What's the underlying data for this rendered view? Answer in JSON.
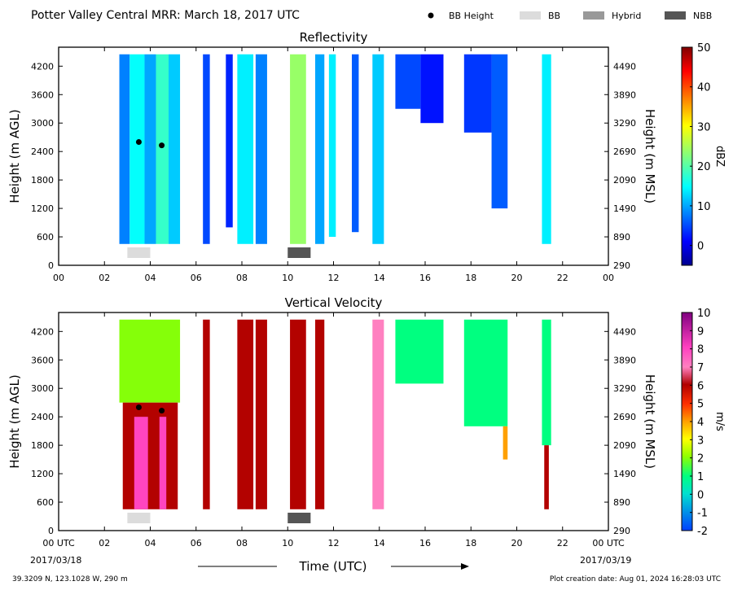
{
  "header": {
    "title": "Potter Valley Central MRR:  March 18, 2017 UTC",
    "legend": [
      {
        "label": "BB Height",
        "kind": "dot",
        "color": "#000000"
      },
      {
        "label": "BB",
        "kind": "bar",
        "color": "#dcdcdc"
      },
      {
        "label": "Hybrid",
        "kind": "bar",
        "color": "#999999"
      },
      {
        "label": "NBB",
        "kind": "bar",
        "color": "#555555"
      }
    ]
  },
  "footer": {
    "location": "39.3209 N, 123.1028 W, 290 m",
    "creation": "Plot creation date: Aug 01, 2024 16:28:03 UTC",
    "xlabel": "Time (UTC)",
    "start_date": "2017/03/18",
    "end_date": "2017/03/19"
  },
  "chart_data": [
    {
      "type": "heatmap",
      "title": "Reflectivity",
      "xlabel": "",
      "ylabel": "Height (m AGL)",
      "ylabel_right": "Height (m MSL)",
      "xlim": [
        0,
        24
      ],
      "ylim": [
        0,
        4600
      ],
      "x_ticks": [
        "00",
        "02",
        "04",
        "06",
        "08",
        "10",
        "12",
        "14",
        "16",
        "18",
        "20",
        "22",
        "00"
      ],
      "y_ticks": [
        0,
        600,
        1200,
        1800,
        2400,
        3000,
        3600,
        4200
      ],
      "y_ticks_right": [
        290,
        890,
        1490,
        2090,
        2690,
        3290,
        3890,
        4490
      ],
      "colorbar": {
        "label": "dBZ",
        "min": -5,
        "max": 50,
        "ticks": [
          0,
          10,
          20,
          30,
          40,
          50
        ]
      },
      "bb_height": [
        {
          "time": 3.5,
          "height": 2600
        },
        {
          "time": 4.5,
          "height": 2530
        }
      ],
      "bb_type_periods": [
        {
          "start": 3.0,
          "end": 4.0,
          "type": "BB"
        },
        {
          "start": 10.0,
          "end": 11.0,
          "type": "NBB"
        }
      ],
      "echo_columns": [
        {
          "start": 2.65,
          "end": 3.1,
          "top": 4450,
          "bottom": 450,
          "value": 8
        },
        {
          "start": 3.1,
          "end": 3.75,
          "top": 4450,
          "bottom": 450,
          "value": 15
        },
        {
          "start": 3.75,
          "end": 4.25,
          "top": 4450,
          "bottom": 450,
          "value": 10
        },
        {
          "start": 4.25,
          "end": 4.8,
          "top": 4450,
          "bottom": 450,
          "value": 18
        },
        {
          "start": 4.8,
          "end": 5.3,
          "top": 4450,
          "bottom": 450,
          "value": 12
        },
        {
          "start": 6.3,
          "end": 6.6,
          "top": 4450,
          "bottom": 450,
          "value": 5
        },
        {
          "start": 7.3,
          "end": 7.6,
          "top": 4450,
          "bottom": 800,
          "value": 3
        },
        {
          "start": 7.8,
          "end": 8.5,
          "top": 4450,
          "bottom": 450,
          "value": 14
        },
        {
          "start": 8.6,
          "end": 9.1,
          "top": 4450,
          "bottom": 450,
          "value": 8
        },
        {
          "start": 10.1,
          "end": 10.8,
          "top": 4450,
          "bottom": 450,
          "value": 24
        },
        {
          "start": 11.2,
          "end": 11.6,
          "top": 4450,
          "bottom": 450,
          "value": 10
        },
        {
          "start": 11.8,
          "end": 12.1,
          "top": 4450,
          "bottom": 600,
          "value": 14
        },
        {
          "start": 12.8,
          "end": 13.1,
          "top": 4450,
          "bottom": 700,
          "value": 6
        },
        {
          "start": 13.7,
          "end": 14.2,
          "top": 4450,
          "bottom": 450,
          "value": 12
        },
        {
          "start": 14.7,
          "end": 15.8,
          "top": 4450,
          "bottom": 3300,
          "value": 5
        },
        {
          "start": 15.8,
          "end": 16.8,
          "top": 4450,
          "bottom": 3000,
          "value": 2
        },
        {
          "start": 17.7,
          "end": 18.9,
          "top": 4450,
          "bottom": 2800,
          "value": 4
        },
        {
          "start": 18.9,
          "end": 19.6,
          "top": 4450,
          "bottom": 1200,
          "value": 6
        },
        {
          "start": 21.1,
          "end": 21.5,
          "top": 4450,
          "bottom": 450,
          "value": 14
        }
      ]
    },
    {
      "type": "heatmap",
      "title": "Vertical Velocity",
      "xlabel": "Time (UTC)",
      "ylabel": "Height (m AGL)",
      "ylabel_right": "Height (m MSL)",
      "xlim": [
        0,
        24
      ],
      "ylim": [
        0,
        4600
      ],
      "x_ticks": [
        "00 UTC",
        "02",
        "04",
        "06",
        "08",
        "10",
        "12",
        "14",
        "16",
        "18",
        "20",
        "22",
        "00 UTC"
      ],
      "y_ticks": [
        0,
        600,
        1200,
        1800,
        2400,
        3000,
        3600,
        4200
      ],
      "y_ticks_right": [
        290,
        890,
        1490,
        2090,
        2690,
        3290,
        3890,
        4490
      ],
      "colorbar": {
        "label": "m/s",
        "min": -2,
        "max": 10,
        "ticks": [
          -2,
          -1,
          0,
          1,
          2,
          3,
          4,
          5,
          6,
          7,
          8,
          9,
          10
        ]
      },
      "bb_height": [
        {
          "time": 3.5,
          "height": 2600
        },
        {
          "time": 4.5,
          "height": 2530
        }
      ],
      "bb_type_periods": [
        {
          "start": 3.0,
          "end": 4.0,
          "type": "BB"
        },
        {
          "start": 10.0,
          "end": 11.0,
          "type": "NBB"
        }
      ],
      "echo_columns": [
        {
          "start": 2.65,
          "end": 5.3,
          "top": 4450,
          "bottom": 2700,
          "value": 2
        },
        {
          "start": 2.8,
          "end": 5.2,
          "top": 2700,
          "bottom": 450,
          "value": 6
        },
        {
          "start": 3.3,
          "end": 3.9,
          "top": 2400,
          "bottom": 450,
          "value": 8
        },
        {
          "start": 4.4,
          "end": 4.7,
          "top": 2400,
          "bottom": 450,
          "value": 8
        },
        {
          "start": 6.3,
          "end": 6.6,
          "top": 4450,
          "bottom": 450,
          "value": 6
        },
        {
          "start": 7.8,
          "end": 8.5,
          "top": 4450,
          "bottom": 450,
          "value": 6
        },
        {
          "start": 8.6,
          "end": 9.1,
          "top": 4450,
          "bottom": 450,
          "value": 6
        },
        {
          "start": 10.1,
          "end": 10.8,
          "top": 4450,
          "bottom": 450,
          "value": 6
        },
        {
          "start": 11.2,
          "end": 11.6,
          "top": 4450,
          "bottom": 450,
          "value": 6
        },
        {
          "start": 13.7,
          "end": 14.2,
          "top": 4450,
          "bottom": 450,
          "value": 7
        },
        {
          "start": 14.7,
          "end": 16.8,
          "top": 4450,
          "bottom": 3100,
          "value": 1
        },
        {
          "start": 17.7,
          "end": 19.6,
          "top": 4450,
          "bottom": 2200,
          "value": 1
        },
        {
          "start": 19.4,
          "end": 19.6,
          "top": 2200,
          "bottom": 1500,
          "value": 4
        },
        {
          "start": 21.1,
          "end": 21.5,
          "top": 4450,
          "bottom": 1800,
          "value": 1
        },
        {
          "start": 21.2,
          "end": 21.4,
          "top": 1800,
          "bottom": 450,
          "value": 6
        }
      ]
    }
  ]
}
